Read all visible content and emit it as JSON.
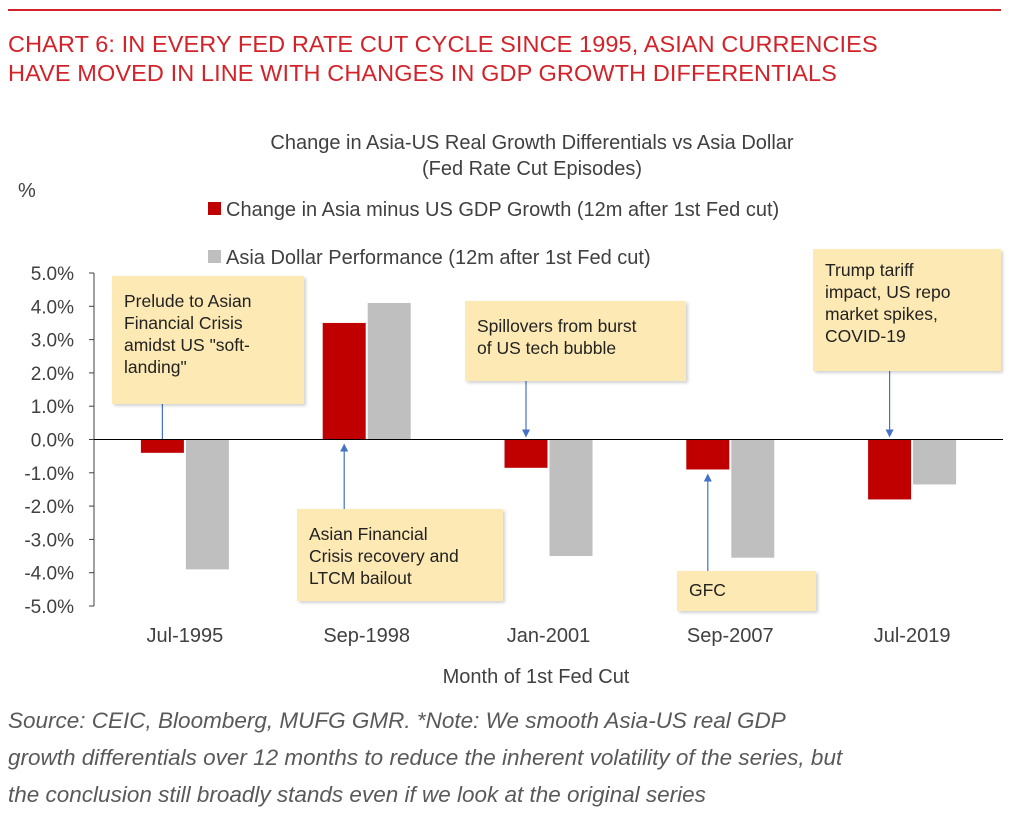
{
  "header": {
    "headline_lines": [
      "CHART 6: IN EVERY FED RATE CUT CYCLE SINCE 1995, ASIAN CURRENCIES",
      "HAVE MOVED IN LINE WITH CHANGES IN GDP GROWTH DIFFERENTIALS"
    ]
  },
  "colors": {
    "accent": "#d2232a",
    "series_red": "#c00000",
    "series_grey": "#bfbfbf",
    "note_bg": "#fde9b3",
    "arrow": "#4472c4"
  },
  "chart_data": {
    "type": "bar",
    "title": "Change in Asia-US Real Growth Differentials vs Asia Dollar",
    "subtitle": "(Fed Rate Cut Episodes)",
    "ylabel": "%",
    "xlabel": "Month of 1st Fed Cut",
    "categories": [
      "Jul-1995",
      "Sep-1998",
      "Jan-2001",
      "Sep-2007",
      "Jul-2019"
    ],
    "ylim": [
      -5.0,
      5.0
    ],
    "yticks": [
      5.0,
      4.0,
      3.0,
      2.0,
      1.0,
      0.0,
      -1.0,
      -2.0,
      -3.0,
      -4.0,
      -5.0
    ],
    "ytick_labels": [
      "5.0%",
      "4.0%",
      "3.0%",
      "2.0%",
      "1.0%",
      "0.0%",
      "-1.0%",
      "-2.0%",
      "-3.0%",
      "-4.0%",
      "-5.0%"
    ],
    "grid": false,
    "legend": "top",
    "series": [
      {
        "name": "Change in Asia minus US GDP Growth (12m after 1st Fed cut)",
        "values": [
          -0.4,
          3.5,
          -0.85,
          -0.9,
          -1.8
        ]
      },
      {
        "name": "Asia Dollar Performance (12m after 1st Fed cut)",
        "values": [
          -3.9,
          4.1,
          -3.5,
          -3.55,
          -1.35
        ]
      }
    ],
    "annotations": [
      {
        "category": 0,
        "lines": [
          "Prelude to Asian",
          "Financial Crisis",
          "amidst US \"soft-",
          "landing\""
        ]
      },
      {
        "category": 1,
        "lines": [
          "Asian Financial",
          "Crisis recovery and",
          "LTCM bailout"
        ]
      },
      {
        "category": 2,
        "lines": [
          "Spillovers from burst",
          "of US tech bubble"
        ]
      },
      {
        "category": 3,
        "lines": [
          "GFC"
        ]
      },
      {
        "category": 4,
        "lines": [
          "Trump tariff",
          "impact, US repo",
          "market spikes,",
          "COVID-19"
        ]
      }
    ]
  },
  "footer": {
    "source_lines": [
      "Source: CEIC, Bloomberg, MUFG GMR.  *Note: We smooth Asia-US real GDP",
      "growth differentials over 12 months to reduce the inherent volatility of the series, but",
      "the conclusion still broadly stands even if we look at the original series"
    ]
  }
}
